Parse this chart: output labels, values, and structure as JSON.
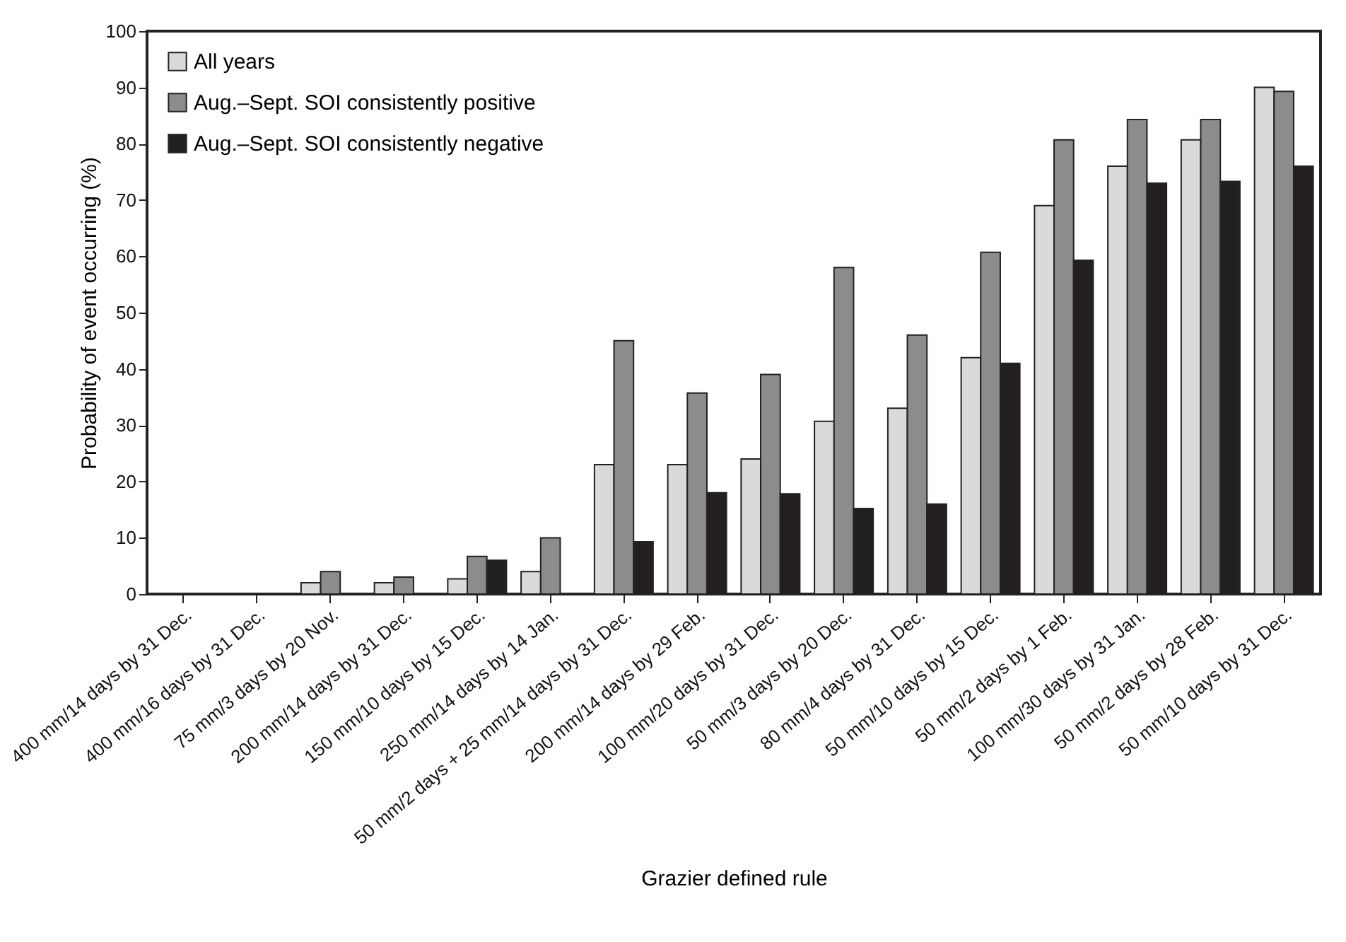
{
  "chart_data": {
    "type": "bar",
    "xlabel": "Grazier defined rule",
    "ylabel": "Probability of event occurring (%)",
    "categories": [
      "400 mm/14 days by 31 Dec.",
      "400 mm/16 days by 31 Dec.",
      "75 mm/3 days by 20 Nov.",
      "200 mm/14 days by 31 Dec.",
      "150 mm/10 days by 15 Dec.",
      "250 mm/14 days by 14 Jan.",
      "50 mm/2 days + 25 mm/14 days by 31 Dec.",
      "200 mm/14 days by 29 Feb.",
      "100 mm/20 days by 31 Dec.",
      "50 mm/3 days by 20 Dec.",
      "80 mm/4 days by 31 Dec.",
      "50 mm/10 days by 15 Dec.",
      "50 mm/2 days by 1 Feb.",
      "100 mm/30 days by 31 Jan.",
      "50 mm/2 days by 28 Feb.",
      "50 mm/10 days by 31 Dec."
    ],
    "series": [
      {
        "name": "All years",
        "color": "#d9dadc",
        "values": [
          0,
          0,
          2,
          2,
          2.7,
          4,
          23,
          23,
          24,
          30.7,
          33,
          42,
          69,
          76,
          80.7,
          90
        ]
      },
      {
        "name": "Aug.–Sept. SOI consistently positive",
        "color": "#8c8c8c",
        "values": [
          0,
          0,
          4,
          3,
          6.7,
          10,
          45,
          35.7,
          39,
          58,
          46,
          60.7,
          80.7,
          84.3,
          84.3,
          89.3
        ]
      },
      {
        "name": "Aug.–Sept. SOI consistently negative",
        "color": "#231f20",
        "values": [
          0,
          0,
          0,
          0,
          6,
          0,
          9.3,
          18,
          17.8,
          15.2,
          16,
          41,
          59.3,
          73,
          73.3,
          76
        ]
      }
    ],
    "ylim": [
      0,
      100
    ],
    "yticks": [
      0,
      10,
      20,
      30,
      40,
      50,
      60,
      70,
      80,
      90,
      100
    ],
    "grid": false,
    "legend": "top left"
  }
}
